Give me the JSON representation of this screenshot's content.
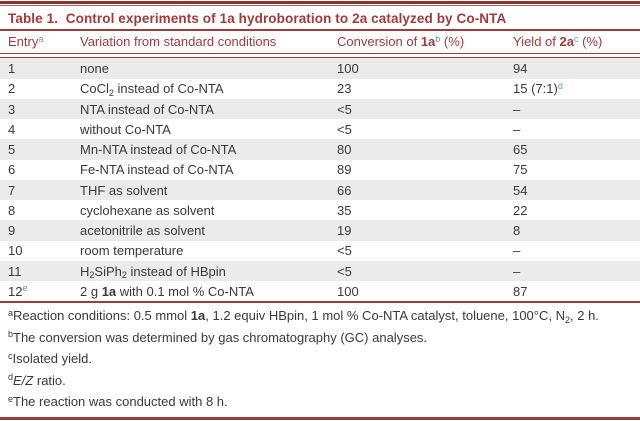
{
  "colors": {
    "accent_red": "#9d3b3d",
    "superscript_blue": "#45a7d9",
    "stripe_gray": "#ebebeb",
    "body_text": "#3a3a3a"
  },
  "table": {
    "title": "Table 1.  Control experiments of 1a hydroboration to 2a catalyzed by Co-NTA",
    "headers": [
      [
        {
          "t": "Entry"
        },
        {
          "t": "a",
          "s": "supb"
        }
      ],
      [
        {
          "t": "Variation from standard conditions"
        }
      ],
      [
        {
          "t": "Conversion of "
        },
        {
          "t": "1a",
          "s": "b"
        },
        {
          "t": "b",
          "s": "supb"
        },
        {
          "t": " (%)"
        }
      ],
      [
        {
          "t": "Yield of "
        },
        {
          "t": "2a",
          "s": "b"
        },
        {
          "t": "c",
          "s": "supb"
        },
        {
          "t": " (%)"
        }
      ]
    ],
    "rows": [
      {
        "entry": [
          {
            "t": "1"
          }
        ],
        "variation": [
          {
            "t": "none"
          }
        ],
        "conversion": [
          {
            "t": "100"
          }
        ],
        "yield": [
          {
            "t": "94"
          }
        ]
      },
      {
        "entry": [
          {
            "t": "2"
          }
        ],
        "variation": [
          {
            "t": "CoCl"
          },
          {
            "t": "2",
            "s": "sub"
          },
          {
            "t": " instead of Co-NTA"
          }
        ],
        "conversion": [
          {
            "t": "23"
          }
        ],
        "yield": [
          {
            "t": "15 (7:1)"
          },
          {
            "t": "d",
            "s": "supb"
          }
        ]
      },
      {
        "entry": [
          {
            "t": "3"
          }
        ],
        "variation": [
          {
            "t": "NTA instead of Co-NTA"
          }
        ],
        "conversion": [
          {
            "t": "<5"
          }
        ],
        "yield": [
          {
            "t": "–"
          }
        ]
      },
      {
        "entry": [
          {
            "t": "4"
          }
        ],
        "variation": [
          {
            "t": "without Co-NTA"
          }
        ],
        "conversion": [
          {
            "t": "<5"
          }
        ],
        "yield": [
          {
            "t": "–"
          }
        ]
      },
      {
        "entry": [
          {
            "t": "5"
          }
        ],
        "variation": [
          {
            "t": "Mn-NTA instead of Co-NTA"
          }
        ],
        "conversion": [
          {
            "t": "80"
          }
        ],
        "yield": [
          {
            "t": "65"
          }
        ]
      },
      {
        "entry": [
          {
            "t": "6"
          }
        ],
        "variation": [
          {
            "t": "Fe-NTA instead of Co-NTA"
          }
        ],
        "conversion": [
          {
            "t": "89"
          }
        ],
        "yield": [
          {
            "t": "75"
          }
        ]
      },
      {
        "entry": [
          {
            "t": "7"
          }
        ],
        "variation": [
          {
            "t": "THF as solvent"
          }
        ],
        "conversion": [
          {
            "t": "66"
          }
        ],
        "yield": [
          {
            "t": "54"
          }
        ]
      },
      {
        "entry": [
          {
            "t": "8"
          }
        ],
        "variation": [
          {
            "t": "cyclohexane as solvent"
          }
        ],
        "conversion": [
          {
            "t": "35"
          }
        ],
        "yield": [
          {
            "t": "22"
          }
        ]
      },
      {
        "entry": [
          {
            "t": "9"
          }
        ],
        "variation": [
          {
            "t": "acetonitrile as solvent"
          }
        ],
        "conversion": [
          {
            "t": "19"
          }
        ],
        "yield": [
          {
            "t": "8"
          }
        ]
      },
      {
        "entry": [
          {
            "t": "10"
          }
        ],
        "variation": [
          {
            "t": "room temperature"
          }
        ],
        "conversion": [
          {
            "t": "<5"
          }
        ],
        "yield": [
          {
            "t": "–"
          }
        ]
      },
      {
        "entry": [
          {
            "t": "11"
          }
        ],
        "variation": [
          {
            "t": "H"
          },
          {
            "t": "2",
            "s": "sub"
          },
          {
            "t": "SiPh"
          },
          {
            "t": "2",
            "s": "sub"
          },
          {
            "t": " instead of HBpin"
          }
        ],
        "conversion": [
          {
            "t": "<5"
          }
        ],
        "yield": [
          {
            "t": "–"
          }
        ]
      },
      {
        "entry": [
          {
            "t": "12"
          },
          {
            "t": "e",
            "s": "supb"
          }
        ],
        "variation": [
          {
            "t": "2 g "
          },
          {
            "t": "1a",
            "s": "b"
          },
          {
            "t": " with 0.1 mol % Co-NTA"
          }
        ],
        "conversion": [
          {
            "t": "100"
          }
        ],
        "yield": [
          {
            "t": "87"
          }
        ]
      }
    ],
    "footnotes": [
      [
        {
          "t": "a",
          "s": "sup"
        },
        {
          "t": "Reaction conditions: 0.5 mmol "
        },
        {
          "t": "1a",
          "s": "b"
        },
        {
          "t": ", 1.2 equiv HBpin, 1 mol % Co-NTA catalyst, toluene, 100°C, N"
        },
        {
          "t": "2",
          "s": "sub"
        },
        {
          "t": ", 2 h."
        }
      ],
      [
        {
          "t": "b",
          "s": "sup"
        },
        {
          "t": "The conversion was determined by gas chromatography (GC) analyses."
        }
      ],
      [
        {
          "t": "c",
          "s": "sup"
        },
        {
          "t": "Isolated yield."
        }
      ],
      [
        {
          "t": "d",
          "s": "sup"
        },
        {
          "t": "E/Z",
          "s": "i"
        },
        {
          "t": " ratio."
        }
      ],
      [
        {
          "t": "e",
          "s": "sup"
        },
        {
          "t": "The reaction was conducted with 8 h."
        }
      ]
    ]
  }
}
